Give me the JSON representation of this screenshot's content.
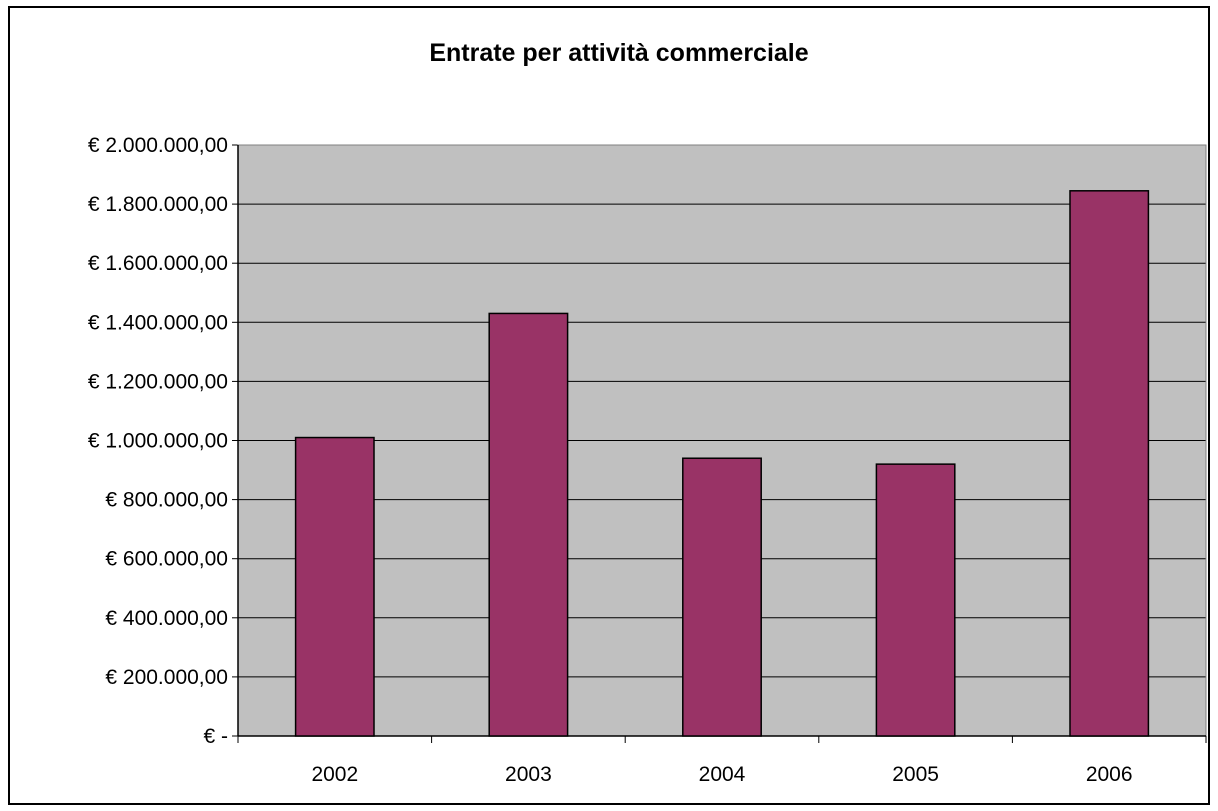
{
  "chart_data": {
    "type": "bar",
    "title": "Entrate per attività commerciale",
    "xlabel": "",
    "ylabel": "",
    "categories": [
      "2002",
      "2003",
      "2004",
      "2005",
      "2006"
    ],
    "values": [
      1010000,
      1430000,
      940000,
      920000,
      1845000
    ],
    "ylim": [
      0,
      2000000
    ],
    "y_ticks": [
      {
        "value": 0,
        "label": "€ -"
      },
      {
        "value": 200000,
        "label": "€ 200.000,00"
      },
      {
        "value": 400000,
        "label": "€ 400.000,00"
      },
      {
        "value": 600000,
        "label": "€ 600.000,00"
      },
      {
        "value": 800000,
        "label": "€ 800.000,00"
      },
      {
        "value": 1000000,
        "label": "€ 1.000.000,00"
      },
      {
        "value": 1200000,
        "label": "€ 1.200.000,00"
      },
      {
        "value": 1400000,
        "label": "€ 1.400.000,00"
      },
      {
        "value": 1600000,
        "label": "€ 1.600.000,00"
      },
      {
        "value": 1800000,
        "label": "€ 1.800.000,00"
      },
      {
        "value": 2000000,
        "label": "€ 2.000.000,00"
      }
    ],
    "grid": true,
    "legend": "none",
    "colors": {
      "bar": "#993366",
      "plot_background": "#c0c0c0",
      "gridline": "#000000",
      "frame": "#000000"
    }
  }
}
